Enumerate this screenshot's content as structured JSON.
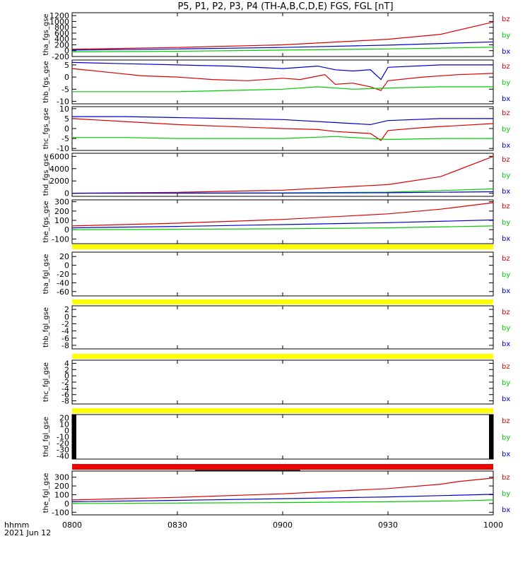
{
  "title": "P5, P1, P2, P3, P4 (TH-A,B,C,D,E) FGS, FGL [nT]",
  "footer": {
    "label1": "hhmm",
    "label2": "2021 Jun 12"
  },
  "colors": {
    "bz": "#dd0000",
    "by": "#00cc00",
    "bx": "#0000cc",
    "flag_yellow": "#ffff00",
    "flag_red": "#ee0000"
  },
  "chart_data": {
    "type": "line",
    "x_axis": {
      "range": [
        "0800",
        "1000"
      ],
      "ticks": [
        "0800",
        "0830",
        "0900",
        "0930",
        "1000"
      ]
    },
    "panels": [
      {
        "ylabel": "tha_fgs_gse",
        "yrange": [
          -200,
          1300
        ],
        "ticks": [
          "1200",
          "1000",
          "800",
          "600",
          "400",
          "200",
          "0",
          "-200"
        ],
        "legend": [
          "bz",
          "by",
          "bx"
        ],
        "series": [
          {
            "name": "bz",
            "points": [
              [
                "0800",
                50
              ],
              [
                "0830",
                110
              ],
              [
                "0900",
                200
              ],
              [
                "0930",
                390
              ],
              [
                "0945",
                560
              ],
              [
                "1000",
                980
              ]
            ]
          },
          {
            "name": "by",
            "points": [
              [
                "0800",
                -40
              ],
              [
                "0830",
                -20
              ],
              [
                "0900",
                20
              ],
              [
                "0930",
                60
              ],
              [
                "1000",
                120
              ]
            ]
          },
          {
            "name": "bx",
            "points": [
              [
                "0800",
                20
              ],
              [
                "0830",
                60
              ],
              [
                "0900",
                110
              ],
              [
                "0930",
                190
              ],
              [
                "1000",
                300
              ]
            ]
          }
        ]
      },
      {
        "ylabel": "thb_fgs_gse",
        "yrange": [
          -11,
          7
        ],
        "ticks": [
          "5",
          "0",
          "-5",
          "-10"
        ],
        "legend": [
          "bz",
          "by",
          "bx"
        ],
        "series": [
          {
            "name": "bz",
            "points": [
              [
                "0800",
                3.5
              ],
              [
                "0810",
                2.0
              ],
              [
                "0820",
                0.5
              ],
              [
                "0830",
                0.0
              ],
              [
                "0840",
                -1.0
              ],
              [
                "0850",
                -1.5
              ],
              [
                "0900",
                -0.5
              ],
              [
                "0905",
                -1.0
              ],
              [
                "0912",
                1.0
              ],
              [
                "0915",
                -3.0
              ],
              [
                "0920",
                -2.5
              ],
              [
                "0925",
                -4.0
              ],
              [
                "0928",
                -5.5
              ],
              [
                "0930",
                -1.5
              ],
              [
                "0940",
                0.0
              ],
              [
                "0950",
                1.0
              ],
              [
                "1000",
                1.5
              ]
            ]
          },
          {
            "name": "by",
            "points": [
              [
                "0800",
                -6.0
              ],
              [
                "0815",
                -6.0
              ],
              [
                "0830",
                -6.0
              ],
              [
                "0845",
                -5.5
              ],
              [
                "0900",
                -5.0
              ],
              [
                "0910",
                -4.0
              ],
              [
                "0920",
                -5.0
              ],
              [
                "0930",
                -4.5
              ],
              [
                "0945",
                -4.0
              ],
              [
                "1000",
                -4.0
              ]
            ]
          },
          {
            "name": "bx",
            "points": [
              [
                "0800",
                6.0
              ],
              [
                "0815",
                5.5
              ],
              [
                "0830",
                5.0
              ],
              [
                "0845",
                4.5
              ],
              [
                "0900",
                3.5
              ],
              [
                "0910",
                4.5
              ],
              [
                "0915",
                3.0
              ],
              [
                "0920",
                2.5
              ],
              [
                "0925",
                3.0
              ],
              [
                "0928",
                -1.0
              ],
              [
                "0930",
                4.0
              ],
              [
                "0945",
                5.0
              ],
              [
                "1000",
                5.0
              ]
            ]
          }
        ]
      },
      {
        "ylabel": "thc_fgs_gse",
        "yrange": [
          -11,
          11
        ],
        "ticks": [
          "10",
          "5",
          "0",
          "-5",
          "-10"
        ],
        "legend": [
          "bz",
          "by",
          "bx"
        ],
        "series": [
          {
            "name": "bz",
            "points": [
              [
                "0800",
                5.0
              ],
              [
                "0815",
                3.5
              ],
              [
                "0830",
                2.0
              ],
              [
                "0845",
                1.0
              ],
              [
                "0900",
                0.0
              ],
              [
                "0910",
                -0.5
              ],
              [
                "0915",
                -1.5
              ],
              [
                "0920",
                -2.0
              ],
              [
                "0925",
                -2.5
              ],
              [
                "0928",
                -6.0
              ],
              [
                "0930",
                -1.0
              ],
              [
                "0940",
                0.5
              ],
              [
                "0950",
                1.5
              ],
              [
                "1000",
                2.5
              ]
            ]
          },
          {
            "name": "by",
            "points": [
              [
                "0800",
                -4.5
              ],
              [
                "0815",
                -4.5
              ],
              [
                "0830",
                -5.0
              ],
              [
                "0845",
                -5.0
              ],
              [
                "0900",
                -5.0
              ],
              [
                "0915",
                -4.0
              ],
              [
                "0930",
                -5.5
              ],
              [
                "0945",
                -5.0
              ],
              [
                "1000",
                -5.0
              ]
            ]
          },
          {
            "name": "bx",
            "points": [
              [
                "0800",
                6.0
              ],
              [
                "0815",
                6.0
              ],
              [
                "0830",
                5.5
              ],
              [
                "0845",
                5.0
              ],
              [
                "0900",
                4.5
              ],
              [
                "0915",
                3.0
              ],
              [
                "0925",
                2.0
              ],
              [
                "0930",
                4.0
              ],
              [
                "0945",
                5.0
              ],
              [
                "1000",
                5.0
              ]
            ]
          }
        ]
      },
      {
        "ylabel": "thd_fgs_gse",
        "yrange": [
          -500,
          6500
        ],
        "ticks": [
          "6000",
          "4000",
          "2000",
          "0"
        ],
        "legend": [
          "bz",
          "by",
          "bx"
        ],
        "series": [
          {
            "name": "bz",
            "points": [
              [
                "0800",
                0
              ],
              [
                "0830",
                150
              ],
              [
                "0900",
                500
              ],
              [
                "0930",
                1400
              ],
              [
                "0945",
                2700
              ],
              [
                "1000",
                6000
              ]
            ]
          },
          {
            "name": "by",
            "points": [
              [
                "0800",
                0
              ],
              [
                "0900",
                60
              ],
              [
                "0930",
                180
              ],
              [
                "1000",
                700
              ]
            ]
          },
          {
            "name": "bx",
            "points": [
              [
                "0800",
                0
              ],
              [
                "0900",
                30
              ],
              [
                "0930",
                80
              ],
              [
                "1000",
                250
              ]
            ]
          }
        ]
      },
      {
        "ylabel": "the_fgs_gse",
        "yrange": [
          -150,
          320
        ],
        "ticks": [
          "300",
          "200",
          "100",
          "0",
          "-100"
        ],
        "legend": [
          "bz",
          "by",
          "bx"
        ],
        "series": [
          {
            "name": "bz",
            "points": [
              [
                "0800",
                40
              ],
              [
                "0830",
                70
              ],
              [
                "0900",
                110
              ],
              [
                "0930",
                170
              ],
              [
                "0945",
                220
              ],
              [
                "1000",
                290
              ]
            ]
          },
          {
            "name": "by",
            "points": [
              [
                "0800",
                0
              ],
              [
                "0830",
                5
              ],
              [
                "0900",
                10
              ],
              [
                "0930",
                20
              ],
              [
                "1000",
                40
              ]
            ]
          },
          {
            "name": "bx",
            "points": [
              [
                "0800",
                20
              ],
              [
                "0830",
                35
              ],
              [
                "0900",
                55
              ],
              [
                "0930",
                75
              ],
              [
                "1000",
                105
              ]
            ]
          }
        ]
      },
      {
        "ylabel": "tha_fgl_gse",
        "yrange": [
          -70,
          30
        ],
        "ticks": [
          "20",
          "0",
          "-20",
          "-40",
          "-60"
        ],
        "legend": [
          "bz",
          "by",
          "bx"
        ],
        "flag": "yellow",
        "series": []
      },
      {
        "ylabel": "thb_fgl_gse",
        "yrange": [
          -9,
          3
        ],
        "ticks": [
          "2",
          "0",
          "-2",
          "-4",
          "-6",
          "-8"
        ],
        "legend": [
          "bz",
          "by",
          "bx"
        ],
        "flag": "yellow",
        "series": []
      },
      {
        "ylabel": "thc_fgl_gse",
        "yrange": [
          -9,
          5
        ],
        "ticks": [
          "4",
          "2",
          "0",
          "-2",
          "-4",
          "-6",
          "-8"
        ],
        "legend": [
          "bz",
          "by",
          "bx"
        ],
        "flag": "yellow",
        "series": []
      },
      {
        "ylabel": "thd_fgl_gse",
        "yrange": [
          -45,
          25
        ],
        "ticks": [
          "20",
          "10",
          "0",
          "-10",
          "-20",
          "-30",
          "-40"
        ],
        "legend": [
          "bz",
          "by",
          "bx"
        ],
        "flag": "yellow",
        "edge_bars": true,
        "series": []
      },
      {
        "ylabel": "the_fgl_gse",
        "yrange": [
          -130,
          370
        ],
        "ticks": [
          "300",
          "200",
          "100",
          "0",
          "-100"
        ],
        "legend": [
          "bz",
          "by",
          "bx"
        ],
        "flag": "red",
        "series": [
          {
            "name": "bz",
            "points": [
              [
                "0800",
                40
              ],
              [
                "0830",
                70
              ],
              [
                "0900",
                110
              ],
              [
                "0930",
                170
              ],
              [
                "0945",
                220
              ],
              [
                "0950",
                250
              ],
              [
                "1000",
                290
              ]
            ]
          },
          {
            "name": "by",
            "points": [
              [
                "0800",
                0
              ],
              [
                "0830",
                5
              ],
              [
                "0900",
                10
              ],
              [
                "0930",
                20
              ],
              [
                "0950",
                30
              ],
              [
                "1000",
                40
              ]
            ]
          },
          {
            "name": "bx",
            "points": [
              [
                "0800",
                20
              ],
              [
                "0830",
                35
              ],
              [
                "0900",
                55
              ],
              [
                "0930",
                75
              ],
              [
                "1000",
                105
              ]
            ]
          }
        ]
      }
    ]
  }
}
